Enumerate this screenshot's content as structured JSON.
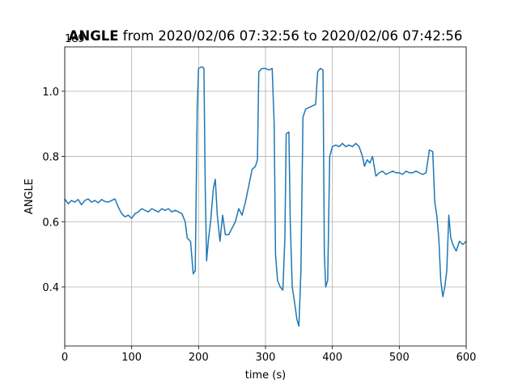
{
  "chart_data": {
    "type": "line",
    "title_parts": [
      "ANGLE",
      " from 2020/02/06 07:32:56 to 2020/02/06 07:42:56"
    ],
    "offset_text": "1e9",
    "x_label": "time (s)",
    "y_label": "ANGLE",
    "xlim": [
      0,
      600
    ],
    "ylim": [
      0.219,
      1.136
    ],
    "xticks": [
      0,
      100,
      200,
      300,
      400,
      500,
      600
    ],
    "yticks": [
      0.4,
      0.6,
      0.8,
      {
        "value": 1,
        "label": "1.0"
      }
    ],
    "grid": true,
    "series": [
      {
        "color": "#1f77b4",
        "x": [
          0,
          5,
          10,
          15,
          20,
          25,
          30,
          35,
          40,
          45,
          50,
          55,
          60,
          65,
          70,
          75,
          80,
          85,
          90,
          95,
          100,
          105,
          110,
          115,
          120,
          125,
          130,
          135,
          140,
          145,
          150,
          155,
          160,
          165,
          170,
          175,
          180,
          183,
          188,
          192,
          195,
          198,
          200,
          205,
          208,
          210,
          212,
          215,
          218,
          222,
          225,
          228,
          232,
          236,
          240,
          245,
          250,
          255,
          260,
          265,
          270,
          275,
          280,
          285,
          288,
          290,
          295,
          300,
          305,
          310,
          313,
          315,
          318,
          322,
          326,
          329,
          331,
          335,
          337,
          340,
          343,
          347,
          350,
          353,
          356,
          360,
          365,
          370,
          375,
          378,
          382,
          386,
          388,
          390,
          393,
          396,
          400,
          405,
          410,
          415,
          420,
          425,
          430,
          435,
          440,
          445,
          448,
          452,
          456,
          460,
          465,
          470,
          475,
          480,
          485,
          490,
          495,
          500,
          505,
          510,
          515,
          520,
          525,
          530,
          535,
          540,
          545,
          550,
          553,
          556,
          559,
          562,
          565,
          568,
          571,
          574,
          577,
          580,
          585,
          590,
          595,
          600
        ],
        "values": [
          0.67,
          0.655,
          0.665,
          0.66,
          0.668,
          0.652,
          0.665,
          0.67,
          0.66,
          0.665,
          0.658,
          0.668,
          0.662,
          0.66,
          0.665,
          0.67,
          0.645,
          0.625,
          0.615,
          0.62,
          0.61,
          0.625,
          0.63,
          0.64,
          0.635,
          0.63,
          0.64,
          0.635,
          0.63,
          0.64,
          0.635,
          0.64,
          0.63,
          0.635,
          0.63,
          0.625,
          0.6,
          0.55,
          0.54,
          0.44,
          0.45,
          0.95,
          1.07,
          1.075,
          1.07,
          0.7,
          0.48,
          0.55,
          0.6,
          0.7,
          0.73,
          0.62,
          0.54,
          0.62,
          0.56,
          0.56,
          0.58,
          0.6,
          0.64,
          0.62,
          0.66,
          0.71,
          0.76,
          0.77,
          0.79,
          1.06,
          1.07,
          1.07,
          1.065,
          1.07,
          0.9,
          0.5,
          0.42,
          0.4,
          0.39,
          0.55,
          0.87,
          0.875,
          0.6,
          0.4,
          0.36,
          0.3,
          0.28,
          0.45,
          0.92,
          0.945,
          0.95,
          0.955,
          0.96,
          1.06,
          1.07,
          1.065,
          0.5,
          0.4,
          0.42,
          0.8,
          0.83,
          0.835,
          0.83,
          0.84,
          0.83,
          0.835,
          0.83,
          0.84,
          0.83,
          0.8,
          0.77,
          0.79,
          0.78,
          0.8,
          0.74,
          0.75,
          0.755,
          0.745,
          0.75,
          0.755,
          0.75,
          0.75,
          0.745,
          0.755,
          0.75,
          0.75,
          0.755,
          0.75,
          0.745,
          0.75,
          0.82,
          0.815,
          0.66,
          0.62,
          0.55,
          0.42,
          0.37,
          0.4,
          0.45,
          0.62,
          0.55,
          0.53,
          0.51,
          0.54,
          0.53,
          0.54
        ]
      }
    ]
  }
}
